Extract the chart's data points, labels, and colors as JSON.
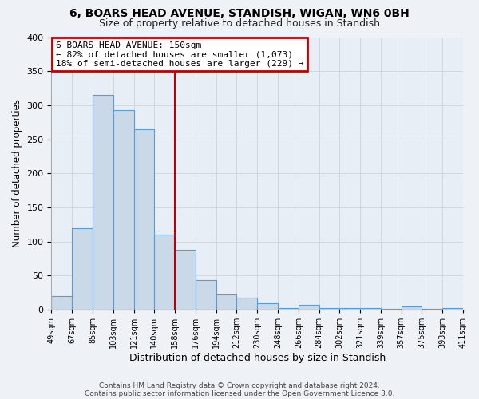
{
  "title": "6, BOARS HEAD AVENUE, STANDISH, WIGAN, WN6 0BH",
  "subtitle": "Size of property relative to detached houses in Standish",
  "xlabel": "Distribution of detached houses by size in Standish",
  "ylabel": "Number of detached properties",
  "bar_values": [
    20,
    120,
    315,
    293,
    265,
    110,
    88,
    43,
    22,
    18,
    9,
    2,
    7,
    2,
    2,
    2,
    1,
    5,
    1,
    2
  ],
  "bin_labels": [
    "49sqm",
    "67sqm",
    "85sqm",
    "103sqm",
    "121sqm",
    "140sqm",
    "158sqm",
    "176sqm",
    "194sqm",
    "212sqm",
    "230sqm",
    "248sqm",
    "266sqm",
    "284sqm",
    "302sqm",
    "321sqm",
    "339sqm",
    "357sqm",
    "375sqm",
    "393sqm",
    "411sqm"
  ],
  "bar_color": "#c9d9e8",
  "bar_edge_color": "#5b9bd5",
  "vline_x_index": 6,
  "vline_color": "#c00000",
  "annotation_title": "6 BOARS HEAD AVENUE: 150sqm",
  "annotation_line1": "← 82% of detached houses are smaller (1,073)",
  "annotation_line2": "18% of semi-detached houses are larger (229) →",
  "annotation_box_color": "#c00000",
  "ylim": [
    0,
    400
  ],
  "yticks": [
    0,
    50,
    100,
    150,
    200,
    250,
    300,
    350,
    400
  ],
  "footer1": "Contains HM Land Registry data © Crown copyright and database right 2024.",
  "footer2": "Contains public sector information licensed under the Open Government Licence 3.0.",
  "bg_color": "#eef2f7",
  "plot_bg_color": "#e8eef5",
  "grid_color": "#c8d4e0"
}
